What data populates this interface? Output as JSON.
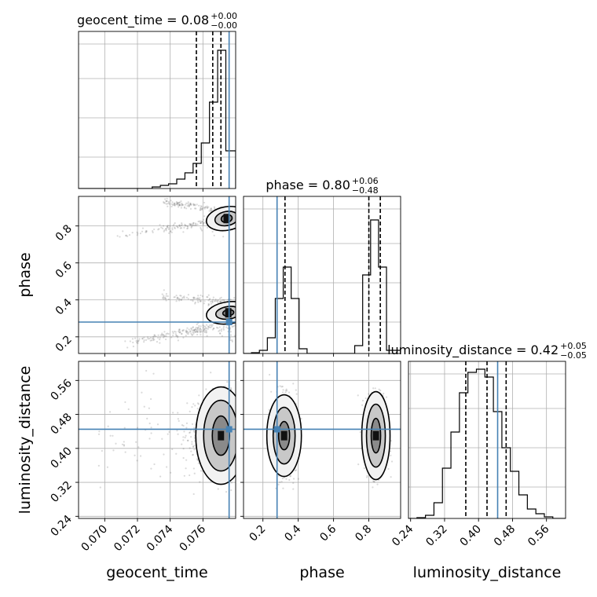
{
  "chart_data": {
    "type": "corner",
    "parameters": [
      "geocent_time",
      "phase",
      "luminosity_distance"
    ],
    "truth": {
      "geocent_time": 0.0776,
      "phase": 0.28,
      "luminosity_distance": 0.445
    },
    "colors": {
      "truth": "#4682b4",
      "hist": "#000000",
      "grid": "#b0b0b0",
      "scatter": "#555555"
    },
    "grid": true,
    "diagonal": [
      {
        "param": "geocent_time",
        "xlim": [
          0.0684,
          0.078
        ],
        "title": {
          "main": "geocent_time = 0.08",
          "sup": "+0.00",
          "sub": "−0.00"
        },
        "quantiles": [
          0.0756,
          0.0766,
          0.0771
        ],
        "bin_edges": [
          0.0684,
          0.0689,
          0.0694,
          0.0699,
          0.0704,
          0.0709,
          0.0714,
          0.0719,
          0.0724,
          0.0729,
          0.0734,
          0.0739,
          0.0744,
          0.0749,
          0.0754,
          0.0759,
          0.0764,
          0.0769,
          0.0774,
          0.078
        ],
        "counts": [
          0,
          0,
          0,
          0,
          0,
          0,
          0,
          0,
          0,
          0.01,
          0.02,
          0.03,
          0.06,
          0.1,
          0.16,
          0.29,
          0.55,
          0.88,
          0.24
        ]
      },
      {
        "param": "phase",
        "xlim": [
          0.09,
          0.98
        ],
        "title": {
          "main": "phase = 0.80",
          "sup": "+0.06",
          "sub": "−0.48"
        },
        "quantiles": [
          0.325,
          0.8,
          0.865
        ],
        "bin_edges": [
          0.09,
          0.135,
          0.18,
          0.225,
          0.27,
          0.315,
          0.36,
          0.405,
          0.45,
          0.495,
          0.54,
          0.585,
          0.63,
          0.675,
          0.72,
          0.765,
          0.81,
          0.855,
          0.9,
          0.98
        ],
        "counts": [
          0,
          0.005,
          0.02,
          0.1,
          0.35,
          0.55,
          0.35,
          0.03,
          0,
          0,
          0,
          0,
          0,
          0,
          0.05,
          0.5,
          0.85,
          0.55,
          0.02
        ]
      },
      {
        "param": "luminosity_distance",
        "xlim": [
          0.235,
          0.605
        ],
        "title": {
          "main": "luminosity_distance = 0.42",
          "sup": "+0.05",
          "sub": "−0.05"
        },
        "quantiles": [
          0.37,
          0.42,
          0.465
        ],
        "bin_edges": [
          0.235,
          0.255,
          0.275,
          0.295,
          0.315,
          0.335,
          0.355,
          0.375,
          0.395,
          0.415,
          0.435,
          0.455,
          0.475,
          0.495,
          0.515,
          0.535,
          0.555,
          0.575,
          0.605
        ],
        "counts": [
          0,
          0.005,
          0.02,
          0.1,
          0.32,
          0.55,
          0.8,
          0.93,
          0.95,
          0.9,
          0.68,
          0.45,
          0.3,
          0.15,
          0.06,
          0.03,
          0.01,
          0
        ]
      }
    ],
    "axes": {
      "geocent_time": {
        "label": "geocent_time",
        "ticks": [
          0.07,
          0.072,
          0.074,
          0.076
        ],
        "tick_labels": [
          "0.070",
          "0.072",
          "0.074",
          "0.076"
        ]
      },
      "phase": {
        "label": "phase",
        "ticks": [
          0.2,
          0.4,
          0.6,
          0.8
        ],
        "tick_labels": [
          "0.2",
          "0.4",
          "0.6",
          "0.8"
        ]
      },
      "luminosity_distance": {
        "label": "luminosity_distance",
        "ticks": [
          0.24,
          0.32,
          0.4,
          0.48,
          0.56
        ],
        "tick_labels": [
          "0.24",
          "0.32",
          "0.40",
          "0.48",
          "0.56"
        ]
      }
    },
    "yranges": {
      "phase": [
        0.11,
        0.96
      ],
      "luminosity_distance": [
        0.235,
        0.605
      ]
    }
  }
}
